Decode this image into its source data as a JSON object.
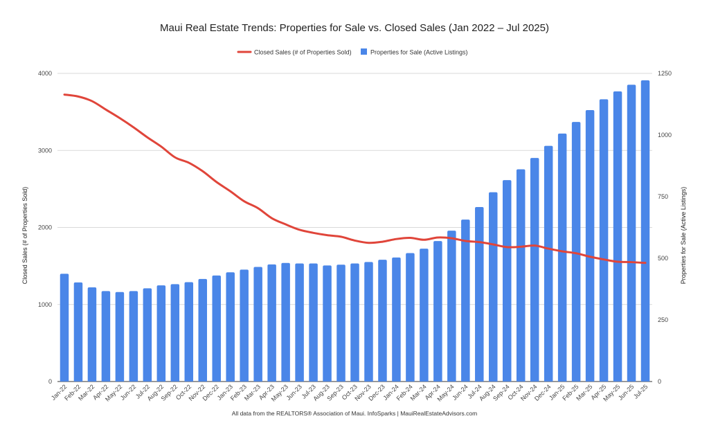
{
  "chart_data": {
    "type": "bar",
    "title": "Maui Real Estate Trends: Properties for Sale vs. Closed Sales (Jan 2022 – Jul 2025)",
    "ylabel": "Closed Sales (# of Properties Sold)",
    "y2label": "Properties for Sale (Active Listings)",
    "ylim": [
      0,
      4000
    ],
    "y2lim": [
      0,
      1250
    ],
    "yticks": [
      "0",
      "1000",
      "2000",
      "3000",
      "4000"
    ],
    "y2ticks": [
      "0",
      "250",
      "500",
      "750",
      "1000",
      "1250"
    ],
    "grid": true,
    "legend_position": "top",
    "categories": [
      "Jan-22",
      "Feb-22",
      "Mar-22",
      "Apr-22",
      "May-22",
      "Jun-22",
      "Jul-22",
      "Aug-22",
      "Sep-22",
      "Oct-22",
      "Nov-22",
      "Dec-22",
      "Jan-23",
      "Feb-23",
      "Mar-23",
      "Apr-23",
      "May-23",
      "Jun-23",
      "Jul-23",
      "Aug-23",
      "Sep-23",
      "Oct-23",
      "Nov-23",
      "Dec-23",
      "Jan-24",
      "Feb-24",
      "Mar-24",
      "Apr-24",
      "May-24",
      "Jun-24",
      "Jul-24",
      "Aug-24",
      "Sep-24",
      "Oct-24",
      "Nov-24",
      "Dec-24",
      "Jan-25",
      "Feb-25",
      "Mar-25",
      "Apr-25",
      "May-25",
      "Jun-25",
      "Jul-25"
    ],
    "series": [
      {
        "name": "Closed Sales (# of Properties Sold)",
        "type": "line",
        "axis": "left",
        "color": "#e0453a",
        "values": [
          3725,
          3700,
          3640,
          3530,
          3420,
          3300,
          3170,
          3050,
          2910,
          2840,
          2730,
          2590,
          2470,
          2340,
          2250,
          2120,
          2040,
          1970,
          1930,
          1900,
          1880,
          1830,
          1800,
          1815,
          1850,
          1865,
          1840,
          1870,
          1860,
          1825,
          1810,
          1780,
          1745,
          1750,
          1765,
          1725,
          1690,
          1665,
          1620,
          1585,
          1555,
          1550,
          1540
        ]
      },
      {
        "name": "Properties for Sale (Active Listings)",
        "type": "bar",
        "axis": "right",
        "color": "#4a86e8",
        "values": [
          437,
          402,
          382,
          367,
          363,
          367,
          378,
          390,
          395,
          403,
          416,
          430,
          443,
          454,
          465,
          475,
          481,
          479,
          479,
          471,
          474,
          479,
          485,
          494,
          503,
          521,
          539,
          570,
          612,
          657,
          708,
          768,
          817,
          861,
          907,
          956,
          1006,
          1053,
          1101,
          1145,
          1177,
          1204,
          1222
        ]
      }
    ]
  },
  "footer": "All data from the REALTORS® Association of Maui. InfoSparks | MauiRealEstateAdvisors.com"
}
